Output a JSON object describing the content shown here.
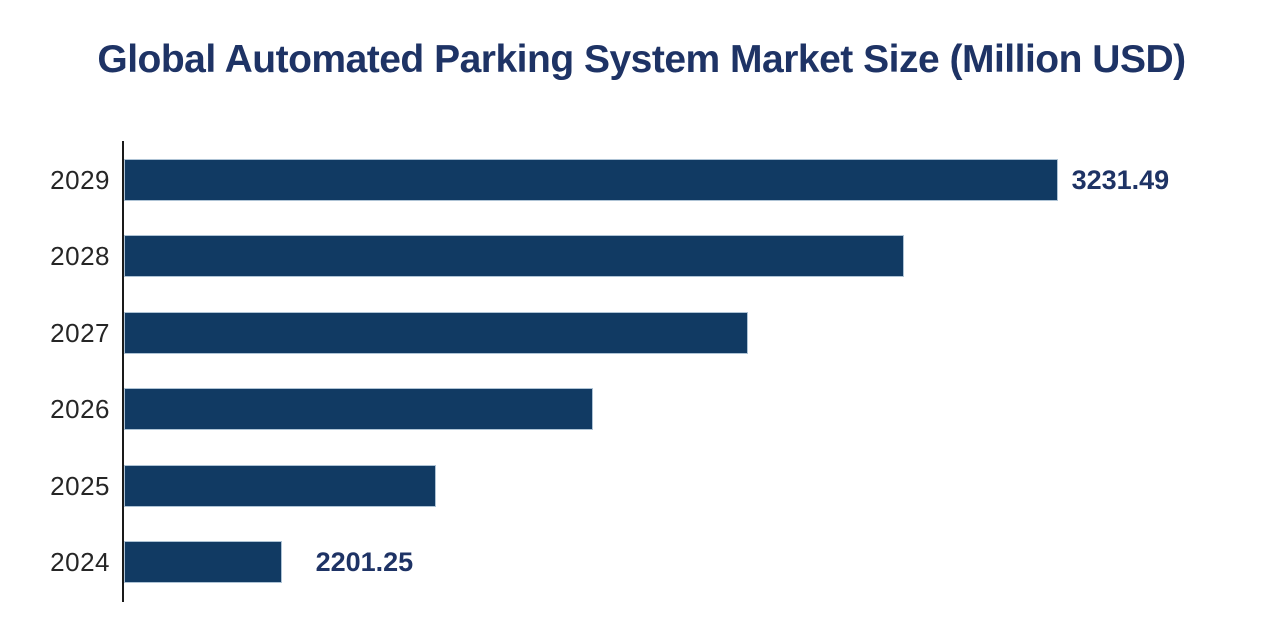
{
  "chart_data": {
    "type": "bar",
    "orientation": "horizontal",
    "title": "Global Automated Parking System Market Size (Million USD)",
    "unit": "Million USD",
    "categories": [
      "2029",
      "2028",
      "2027",
      "2026",
      "2025",
      "2024"
    ],
    "values": [
      3231.49,
      3027.0,
      2819.9,
      2614.2,
      2405.7,
      2201.25
    ],
    "data_labels": [
      "3231.49",
      null,
      null,
      null,
      null,
      "2201.25"
    ],
    "axis_range": [
      1992,
      3475
    ],
    "xlabel": "",
    "ylabel": "",
    "grid": false,
    "legend": false,
    "colors": {
      "bar_fill": "#113A63",
      "bar_border": "#AEC3D5",
      "title_text": "#1E3365",
      "value_label_text": "#1E3365",
      "tick_text": "#262626",
      "axis_line": "#1A1A1A",
      "background": "#FFFFFF"
    }
  }
}
